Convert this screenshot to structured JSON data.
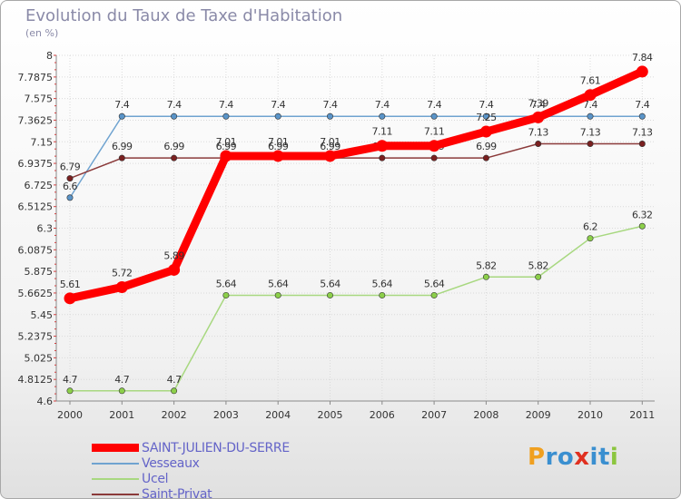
{
  "chart_data": {
    "type": "line",
    "title": "Evolution du Taux de Taxe d'Habitation",
    "subtitle": "(en %)",
    "xlabel": "",
    "ylabel": "",
    "categories": [
      "2000",
      "2001",
      "2002",
      "2003",
      "2004",
      "2005",
      "2006",
      "2007",
      "2008",
      "2009",
      "2010",
      "2011"
    ],
    "ylim": [
      4.6,
      8
    ],
    "yticks": [
      "8",
      "7.7875",
      "7.575",
      "7.3625",
      "7.15",
      "6.9375",
      "6.725",
      "6.5125",
      "6.3",
      "6.0875",
      "5.875",
      "5.6625",
      "5.45",
      "5.2375",
      "5.025",
      "4.8125",
      "4.6"
    ],
    "series": [
      {
        "name": "Vesseaux",
        "color": "#6fa3d0",
        "dot": "#5a94c8",
        "values": [
          6.6,
          7.4,
          7.4,
          7.4,
          7.4,
          7.4,
          7.4,
          7.4,
          7.4,
          7.4,
          7.4,
          7.4
        ],
        "labels": [
          "6.6",
          "7.4",
          "7.4",
          "7.4",
          "7.4",
          "7.4",
          "7.4",
          "7.4",
          "7.4",
          "7.4",
          "7.4",
          "7.4"
        ]
      },
      {
        "name": "Ucel",
        "color": "#a8d880",
        "dot": "#8ccf4a",
        "values": [
          4.7,
          4.7,
          4.7,
          5.64,
          5.64,
          5.64,
          5.64,
          5.64,
          5.82,
          5.82,
          6.2,
          6.32
        ],
        "labels": [
          "4.7",
          "4.7",
          "4.7",
          "5.64",
          "5.64",
          "5.64",
          "5.64",
          "5.64",
          "5.82",
          "5.82",
          "6.2",
          "6.32"
        ]
      },
      {
        "name": "Saint-Privat",
        "color": "#8b3a3a",
        "dot": "#7a2020",
        "values": [
          6.79,
          6.99,
          6.99,
          6.99,
          6.99,
          6.99,
          6.99,
          6.99,
          6.99,
          7.13,
          7.13,
          7.13
        ],
        "labels": [
          "6.79",
          "6.99",
          "6.99",
          "6.99",
          "6.99",
          "6.99",
          "6.99",
          "6.99",
          "6.99",
          "7.13",
          "7.13",
          "7.13"
        ]
      },
      {
        "name": "SAINT-JULIEN-DU-SERRE",
        "color": "#ff0000",
        "dot": "#ff0000",
        "values": [
          5.61,
          5.72,
          5.89,
          7.01,
          7.01,
          7.01,
          7.11,
          7.11,
          7.25,
          7.39,
          7.61,
          7.84
        ],
        "labels": [
          "5.61",
          "5.72",
          "5.89",
          "7.01",
          "7.01",
          "7.01",
          "7.11",
          "7.11",
          "7.25",
          "7.39",
          "7.61",
          "7.84"
        ]
      }
    ]
  },
  "legend": [
    {
      "label": "SAINT-JULIEN-DU-SERRE",
      "color": "#ff0000"
    },
    {
      "label": "Vesseaux",
      "color": "#6fa3d0"
    },
    {
      "label": "Ucel",
      "color": "#a8d880"
    },
    {
      "label": "Saint-Privat",
      "color": "#8b3a3a"
    }
  ],
  "logo": {
    "text": "Proxiti",
    "letters": [
      "P",
      "r",
      "o",
      "x",
      "i",
      "t",
      "i"
    ],
    "colors": [
      "#f0a020",
      "#3a8fd0",
      "#3a8fd0",
      "#e03020",
      "#3a8fd0",
      "#3a8fd0",
      "#8cc63f"
    ]
  }
}
